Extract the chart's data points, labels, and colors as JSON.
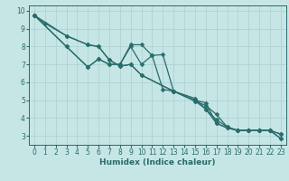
{
  "xlabel": "Humidex (Indice chaleur)",
  "xlim": [
    -0.5,
    23.5
  ],
  "ylim": [
    2.5,
    10.3
  ],
  "yticks": [
    3,
    4,
    5,
    6,
    7,
    8,
    9,
    10
  ],
  "xticks": [
    0,
    1,
    2,
    3,
    4,
    5,
    6,
    7,
    8,
    9,
    10,
    11,
    12,
    13,
    14,
    15,
    16,
    17,
    18,
    19,
    20,
    21,
    22,
    23
  ],
  "bg_color": "#c6e6e6",
  "grid_color": "#aacfcf",
  "line_color": "#2a6b6b",
  "lines": [
    [
      9.75,
      9.3,
      null,
      8.6,
      null,
      8.1,
      8.0,
      7.25,
      6.9,
      7.0,
      6.4,
      null,
      null,
      5.5,
      null,
      5.0,
      4.85,
      3.7,
      3.45,
      3.3,
      3.3,
      3.3,
      3.3,
      3.1
    ],
    [
      9.75,
      null,
      null,
      8.0,
      null,
      6.85,
      7.3,
      7.0,
      7.0,
      8.0,
      7.0,
      7.5,
      5.6,
      5.5,
      null,
      5.1,
      4.5,
      3.7,
      3.45,
      3.3,
      3.3,
      3.3,
      3.3,
      3.1
    ],
    [
      9.75,
      null,
      null,
      8.0,
      null,
      6.85,
      7.3,
      7.0,
      7.0,
      8.1,
      8.1,
      7.5,
      7.55,
      5.5,
      null,
      4.95,
      4.5,
      3.9,
      3.5,
      3.3,
      3.3,
      3.3,
      3.3,
      2.85
    ],
    [
      9.75,
      null,
      null,
      8.6,
      null,
      8.1,
      8.0,
      7.25,
      6.9,
      7.0,
      6.4,
      null,
      null,
      5.5,
      null,
      4.95,
      4.7,
      4.2,
      3.5,
      3.3,
      3.3,
      3.3,
      3.3,
      2.85
    ]
  ],
  "marker_size": 2.5,
  "line_width": 0.9,
  "font_color": "#2a6b6b",
  "label_fontsize": 6.5,
  "tick_fontsize": 5.5
}
